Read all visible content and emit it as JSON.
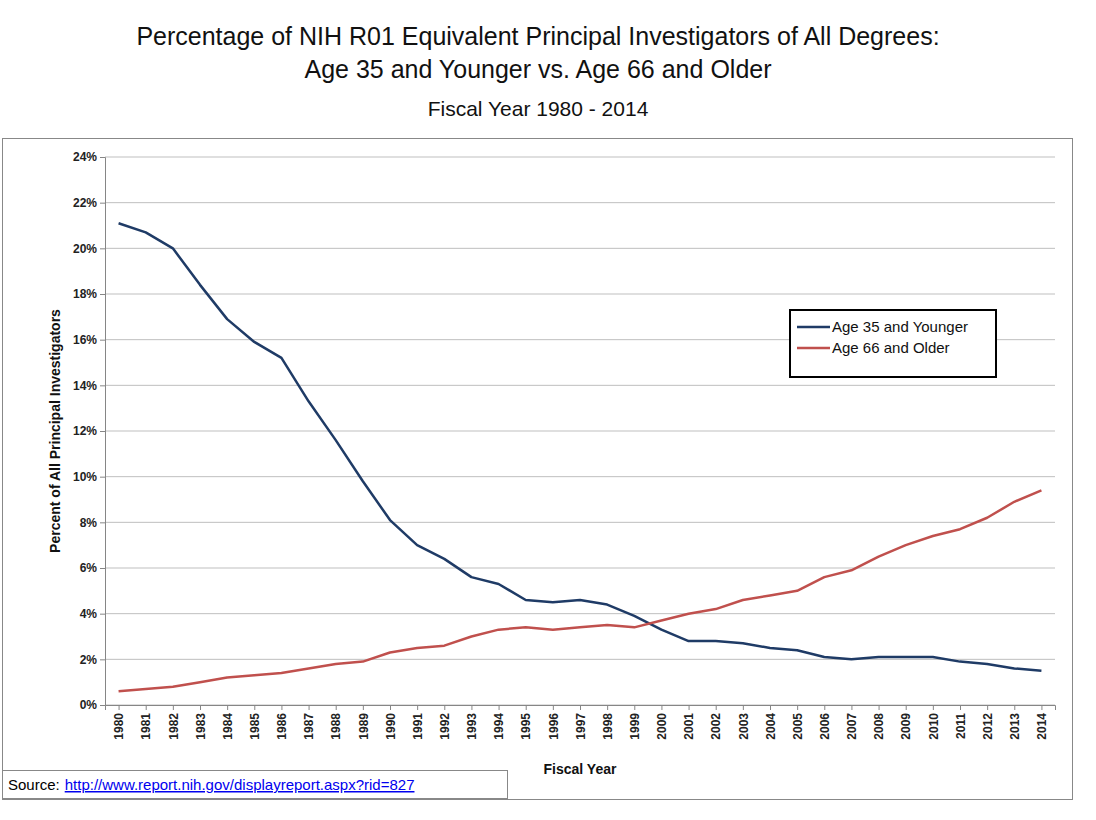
{
  "chart_data": {
    "type": "line",
    "title": [
      "Percentage of NIH R01 Equivalent Principal Investigators of All Degrees:",
      "Age 35 and Younger vs. Age 66 and Older"
    ],
    "subtitle": "Fiscal Year 1980 - 2014",
    "x_label": "Fiscal Year",
    "y_label": "Percent of All Principal Investigators",
    "source": {
      "label": "Source:",
      "url": "http://www.report.nih.gov/displayreport.aspx?rid=827"
    },
    "categories": [
      "1980",
      "1981",
      "1982",
      "1983",
      "1984",
      "1985",
      "1986",
      "1987",
      "1988",
      "1989",
      "1990",
      "1991",
      "1992",
      "1993",
      "1994",
      "1995",
      "1996",
      "1997",
      "1998",
      "1999",
      "2000",
      "2001",
      "2002",
      "2003",
      "2004",
      "2005",
      "2006",
      "2007",
      "2008",
      "2009",
      "2010",
      "2011",
      "2012",
      "2013",
      "2014"
    ],
    "series": [
      {
        "name": "Age 35 and Younger",
        "color": "#1f3b66",
        "values": [
          21.1,
          20.7,
          20.0,
          18.4,
          16.9,
          15.9,
          15.2,
          13.3,
          11.6,
          9.8,
          8.1,
          7.0,
          6.4,
          5.6,
          5.3,
          4.6,
          4.5,
          4.6,
          4.4,
          3.9,
          3.3,
          2.8,
          2.8,
          2.7,
          2.5,
          2.4,
          2.1,
          2.0,
          2.1,
          2.1,
          2.1,
          1.9,
          1.8,
          1.6,
          1.5
        ]
      },
      {
        "name": "Age 66 and Older",
        "color": "#c0504d",
        "values": [
          0.6,
          0.7,
          0.8,
          1.0,
          1.2,
          1.3,
          1.4,
          1.6,
          1.8,
          1.9,
          2.3,
          2.5,
          2.6,
          3.0,
          3.3,
          3.4,
          3.3,
          3.4,
          3.5,
          3.4,
          3.7,
          4.0,
          4.2,
          4.6,
          4.8,
          5.0,
          5.6,
          5.9,
          6.5,
          7.0,
          7.4,
          7.7,
          8.2,
          8.9,
          9.4
        ]
      }
    ],
    "ylim": [
      0,
      24
    ],
    "yticks": [
      {
        "value": 0,
        "label": "0%"
      },
      {
        "value": 2,
        "label": "2%"
      },
      {
        "value": 4,
        "label": "4%"
      },
      {
        "value": 6,
        "label": "6%"
      },
      {
        "value": 8,
        "label": "8%"
      },
      {
        "value": 10,
        "label": "10%"
      },
      {
        "value": 12,
        "label": "12%"
      },
      {
        "value": 14,
        "label": "14%"
      },
      {
        "value": 16,
        "label": "16%"
      },
      {
        "value": 18,
        "label": "18%"
      },
      {
        "value": 20,
        "label": "20%"
      },
      {
        "value": 22,
        "label": "22%"
      },
      {
        "value": 24,
        "label": "24%"
      }
    ],
    "grid": true,
    "legend": "top-right"
  }
}
